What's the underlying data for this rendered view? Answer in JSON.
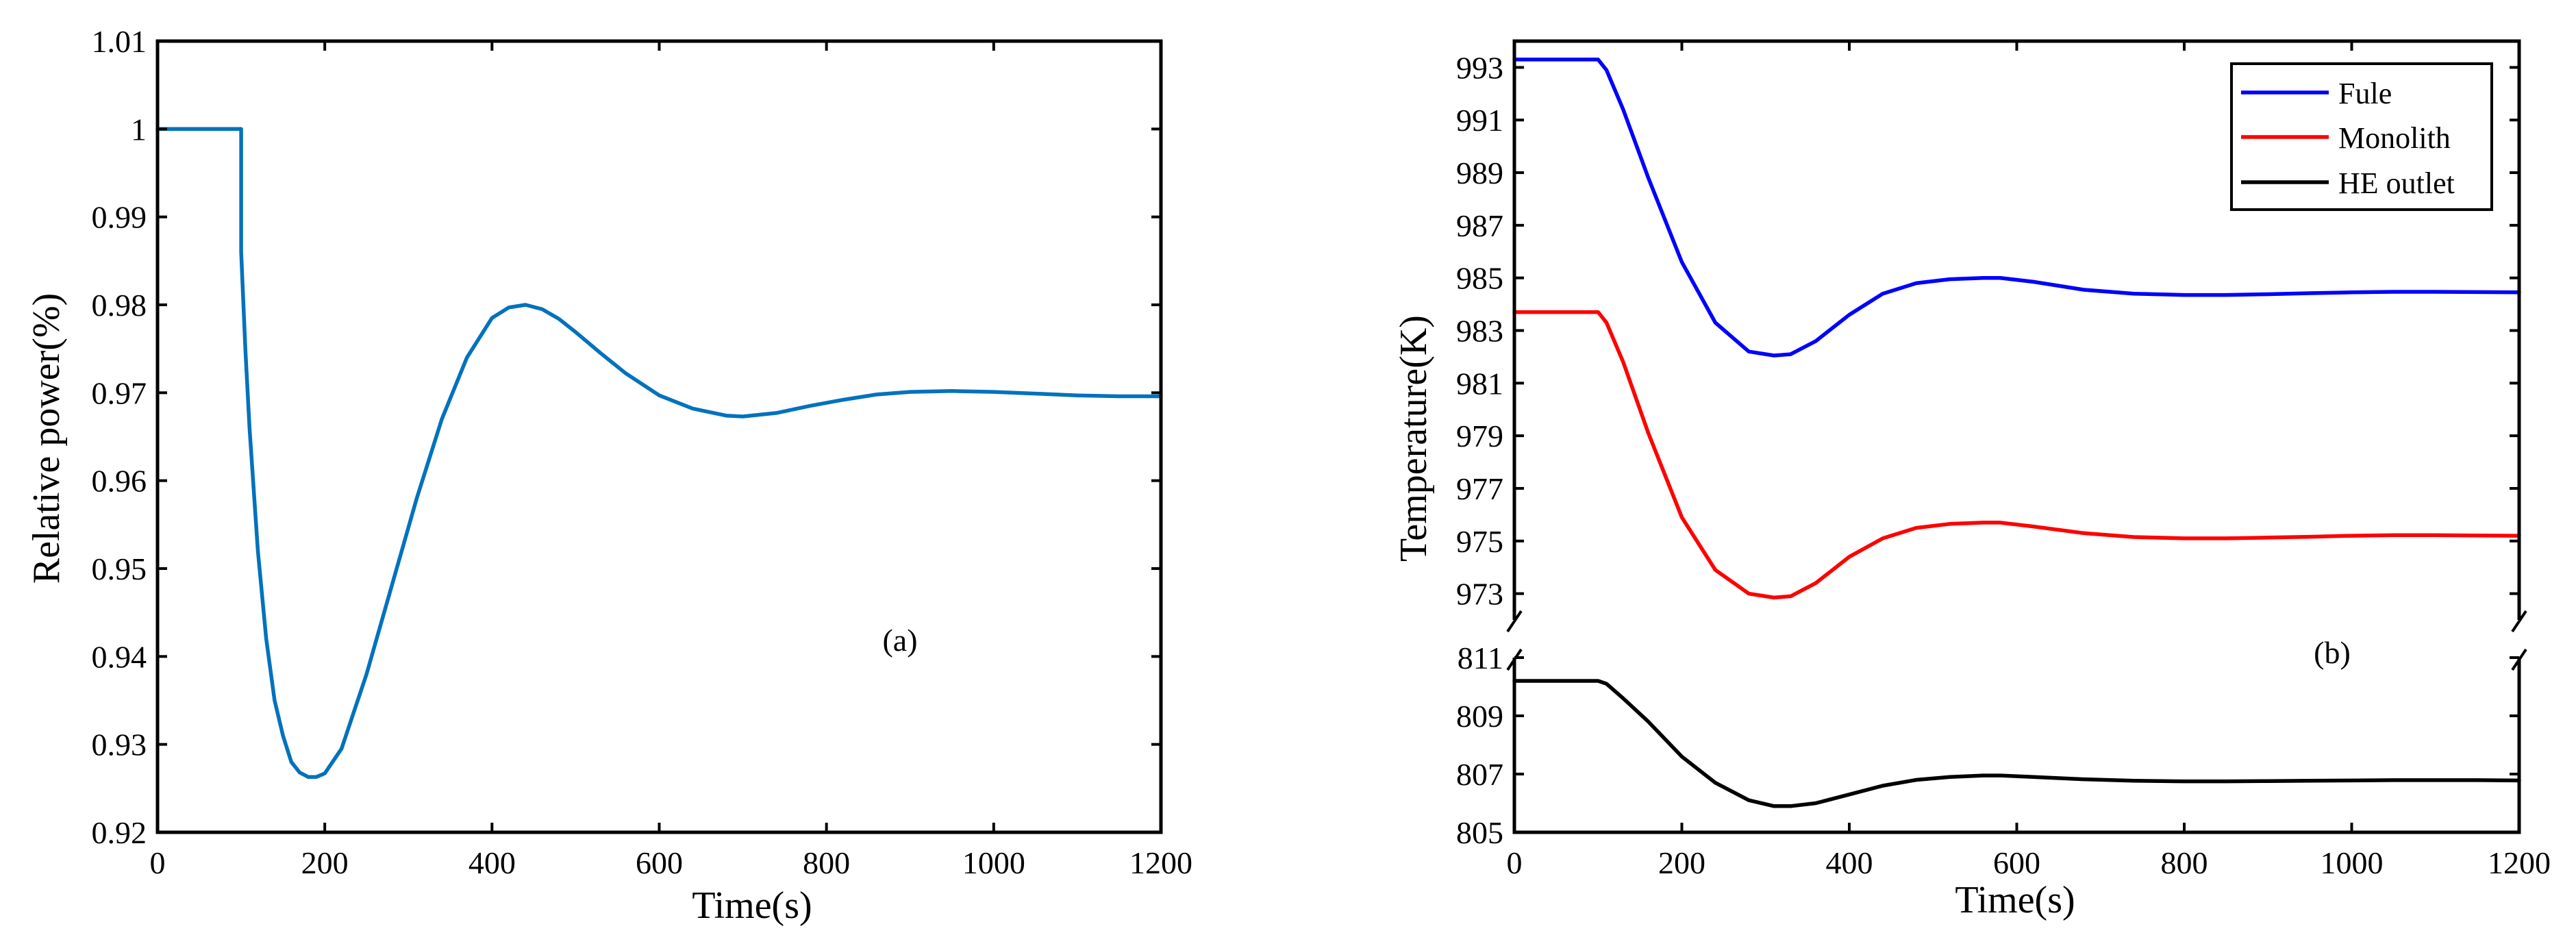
{
  "chart_data": [
    {
      "id": "a",
      "type": "line",
      "title": "",
      "xlabel": "Time(s)",
      "ylabel": "Relative power(%)",
      "annotation": "(a)",
      "xlim": [
        0,
        1200
      ],
      "ylim": [
        0.92,
        1.01
      ],
      "xticks": [
        0,
        200,
        400,
        600,
        800,
        1000,
        1200
      ],
      "xtick_labels": [
        "0",
        "200",
        "400",
        "600",
        "800",
        "1000",
        "1200"
      ],
      "yticks": [
        0.92,
        0.93,
        0.94,
        0.95,
        0.96,
        0.97,
        0.98,
        0.99,
        1.0,
        1.01
      ],
      "ytick_labels": [
        "0.92",
        "0.93",
        "0.94",
        "0.95",
        "0.96",
        "0.97",
        "0.98",
        "0.99",
        "1",
        "1.01"
      ],
      "grid": false,
      "series": [
        {
          "name": "Relative power",
          "color": "#0072BD",
          "x": [
            0,
            100,
            100,
            105,
            110,
            120,
            130,
            140,
            150,
            160,
            170,
            180,
            190,
            200,
            220,
            250,
            280,
            310,
            340,
            370,
            400,
            420,
            440,
            460,
            480,
            500,
            530,
            560,
            600,
            640,
            680,
            700,
            740,
            780,
            820,
            860,
            900,
            950,
            1000,
            1050,
            1100,
            1150,
            1200
          ],
          "y": [
            1.0,
            1.0,
            0.986,
            0.975,
            0.966,
            0.952,
            0.942,
            0.935,
            0.931,
            0.928,
            0.9268,
            0.9263,
            0.9263,
            0.9267,
            0.9295,
            0.938,
            0.948,
            0.958,
            0.967,
            0.974,
            0.9785,
            0.9797,
            0.98,
            0.9795,
            0.9784,
            0.9769,
            0.9745,
            0.9722,
            0.9697,
            0.9682,
            0.9674,
            0.9673,
            0.9677,
            0.9685,
            0.9692,
            0.9698,
            0.9701,
            0.9702,
            0.9701,
            0.9699,
            0.9697,
            0.9696,
            0.9696
          ]
        }
      ]
    },
    {
      "id": "b",
      "type": "line",
      "title": "",
      "xlabel": "Time(s)",
      "ylabel": "Temperature(K)",
      "annotation": "(b)",
      "broken_axis": true,
      "xlim": [
        0,
        1200
      ],
      "ylim_upper": [
        972,
        994
      ],
      "ylim_lower": [
        805,
        811
      ],
      "xticks": [
        0,
        200,
        400,
        600,
        800,
        1000,
        1200
      ],
      "xtick_labels": [
        "0",
        "200",
        "400",
        "600",
        "800",
        "1000",
        "1200"
      ],
      "yticks_upper": [
        973,
        975,
        977,
        979,
        981,
        983,
        985,
        987,
        989,
        991,
        993
      ],
      "ytick_labels_upper": [
        "973",
        "975",
        "977",
        "979",
        "981",
        "983",
        "985",
        "987",
        "989",
        "991",
        "993"
      ],
      "yticks_lower": [
        805,
        807,
        809,
        811
      ],
      "ytick_labels_lower": [
        "805",
        "807",
        "809",
        "811"
      ],
      "grid": false,
      "legend": {
        "position": "top-right",
        "entries": [
          "Fule",
          "Monolith",
          "HE outlet"
        ]
      },
      "series": [
        {
          "name": "Fule",
          "axis": "upper",
          "color": "#0000FF",
          "x": [
            0,
            100,
            110,
            130,
            160,
            200,
            240,
            280,
            310,
            330,
            360,
            400,
            440,
            480,
            520,
            560,
            580,
            620,
            680,
            740,
            800,
            850,
            900,
            950,
            1000,
            1050,
            1100,
            1150,
            1200
          ],
          "y": [
            993.3,
            993.3,
            992.9,
            991.4,
            988.8,
            985.6,
            983.3,
            982.2,
            982.05,
            982.1,
            982.6,
            983.6,
            984.4,
            984.8,
            984.95,
            985.0,
            985.0,
            984.85,
            984.55,
            984.4,
            984.35,
            984.35,
            984.38,
            984.42,
            984.45,
            984.47,
            984.47,
            984.46,
            984.45
          ]
        },
        {
          "name": "Monolith",
          "axis": "upper",
          "color": "#FF0000",
          "x": [
            0,
            100,
            110,
            130,
            160,
            200,
            240,
            280,
            310,
            330,
            360,
            400,
            440,
            480,
            520,
            560,
            580,
            620,
            680,
            740,
            800,
            850,
            900,
            950,
            1000,
            1050,
            1100,
            1150,
            1200
          ],
          "y": [
            983.7,
            983.7,
            983.3,
            981.8,
            979.1,
            975.9,
            973.9,
            973.0,
            972.85,
            972.9,
            973.4,
            974.4,
            975.1,
            975.5,
            975.65,
            975.7,
            975.7,
            975.55,
            975.3,
            975.15,
            975.1,
            975.1,
            975.13,
            975.16,
            975.2,
            975.22,
            975.22,
            975.21,
            975.2
          ]
        },
        {
          "name": "HE outlet",
          "axis": "lower",
          "color": "#000000",
          "x": [
            0,
            100,
            110,
            130,
            160,
            200,
            240,
            280,
            310,
            330,
            360,
            400,
            440,
            480,
            520,
            560,
            580,
            620,
            680,
            740,
            800,
            850,
            900,
            950,
            1000,
            1050,
            1100,
            1150,
            1200
          ],
          "y": [
            810.2,
            810.2,
            810.1,
            809.6,
            808.8,
            807.6,
            806.7,
            806.1,
            805.9,
            805.9,
            806.0,
            806.3,
            806.6,
            806.8,
            806.9,
            806.95,
            806.95,
            806.9,
            806.82,
            806.77,
            806.75,
            806.75,
            806.76,
            806.77,
            806.78,
            806.79,
            806.79,
            806.79,
            806.78
          ]
        }
      ]
    }
  ]
}
